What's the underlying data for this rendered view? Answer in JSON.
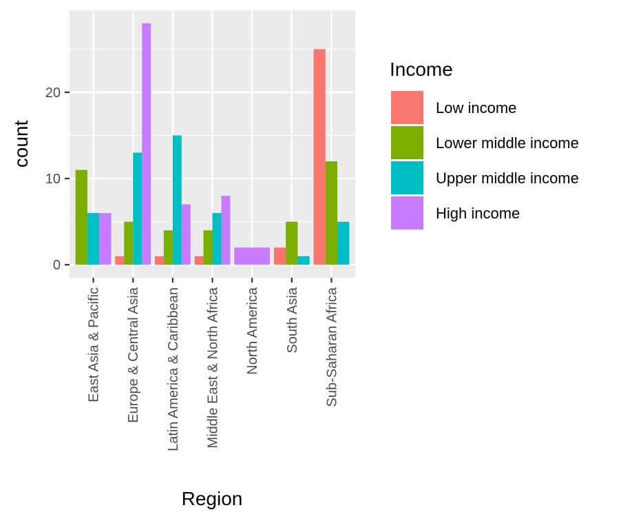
{
  "chart_data": {
    "type": "bar",
    "layout": "dodge",
    "xlabel": "Region",
    "ylabel": "count",
    "ylim": [
      -1.5,
      29.5
    ],
    "yticks": [
      0,
      10,
      20
    ],
    "grid": true,
    "legend_title": "Income",
    "legend_position": "right",
    "categories": [
      "East Asia & Pacific",
      "Europe & Central Asia",
      "Latin America & Caribbean",
      "Middle East & North Africa",
      "North America",
      "South Asia",
      "Sub-Saharan Africa"
    ],
    "series": [
      {
        "name": "Low income",
        "color": "#F8766D",
        "values": [
          null,
          1,
          1,
          1,
          null,
          2,
          25
        ]
      },
      {
        "name": "Lower middle income",
        "color": "#7CAE00",
        "values": [
          11,
          5,
          4,
          4,
          null,
          5,
          12
        ]
      },
      {
        "name": "Upper middle income",
        "color": "#00BFC4",
        "values": [
          6,
          13,
          15,
          6,
          null,
          1,
          5
        ]
      },
      {
        "name": "High income",
        "color": "#C77CFF",
        "values": [
          6,
          28,
          7,
          8,
          2,
          null,
          null
        ]
      }
    ]
  }
}
